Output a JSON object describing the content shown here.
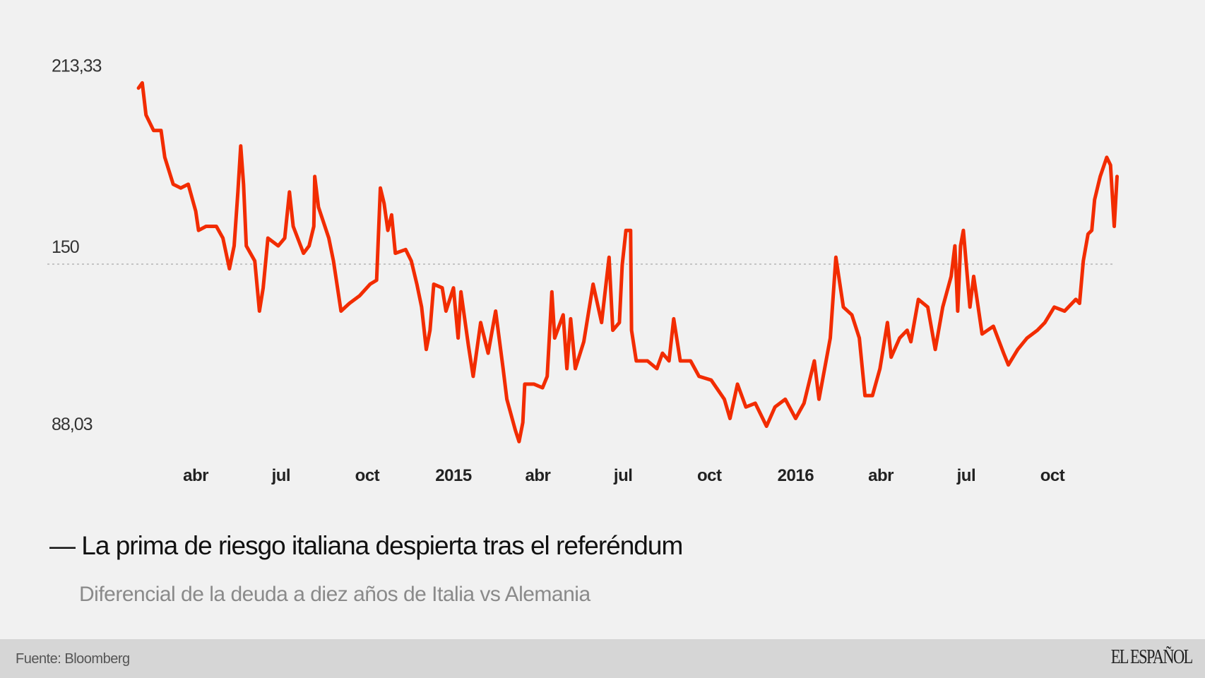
{
  "chart_data": {
    "type": "line",
    "title": "— La prima de riesgo italiana despierta tras el referéndum",
    "subtitle": "Diferencial de la deuda a diez años de Italia vs Alemania",
    "xlabel": "",
    "ylabel": "",
    "ylim": [
      88.03,
      213.33
    ],
    "y_ticks": [
      {
        "value": 213.33,
        "label": "213,33"
      },
      {
        "value": 150,
        "label": "150"
      },
      {
        "value": 88.03,
        "label": "88,03"
      }
    ],
    "reference_line": {
      "value": 150,
      "style": "dotted"
    },
    "x_ticks": [
      {
        "date": "2014-04-01",
        "label": "abr"
      },
      {
        "date": "2014-07-01",
        "label": "jul"
      },
      {
        "date": "2014-10-01",
        "label": "oct"
      },
      {
        "date": "2015-01-01",
        "label": "2015"
      },
      {
        "date": "2015-04-01",
        "label": "abr"
      },
      {
        "date": "2015-07-01",
        "label": "jul"
      },
      {
        "date": "2015-10-01",
        "label": "oct"
      },
      {
        "date": "2016-01-01",
        "label": "2016"
      },
      {
        "date": "2016-04-01",
        "label": "abr"
      },
      {
        "date": "2016-07-01",
        "label": "jul"
      },
      {
        "date": "2016-10-01",
        "label": "oct"
      }
    ],
    "grid": false,
    "legend": "none",
    "series": [
      {
        "color": "#f22c00",
        "points": [
          [
            "2014-01-30",
            211.5
          ],
          [
            "2014-02-03",
            213.3
          ],
          [
            "2014-02-07",
            202.1
          ],
          [
            "2014-02-15",
            196.7
          ],
          [
            "2014-02-23",
            196.7
          ],
          [
            "2014-02-27",
            187.3
          ],
          [
            "2014-03-08",
            177.9
          ],
          [
            "2014-03-16",
            176.6
          ],
          [
            "2014-03-24",
            177.9
          ],
          [
            "2014-04-01",
            168.5
          ],
          [
            "2014-04-04",
            161.8
          ],
          [
            "2014-04-12",
            163.2
          ],
          [
            "2014-04-23",
            163.2
          ],
          [
            "2014-04-30",
            159.1
          ],
          [
            "2014-05-07",
            148.4
          ],
          [
            "2014-05-12",
            156.4
          ],
          [
            "2014-05-16",
            175.2
          ],
          [
            "2014-05-19",
            191.3
          ],
          [
            "2014-05-22",
            177.9
          ],
          [
            "2014-05-25",
            156.4
          ],
          [
            "2014-06-03",
            151.1
          ],
          [
            "2014-06-08",
            133.6
          ],
          [
            "2014-06-12",
            141.7
          ],
          [
            "2014-06-17",
            159.1
          ],
          [
            "2014-06-28",
            156.4
          ],
          [
            "2014-07-05",
            159.1
          ],
          [
            "2014-07-10",
            175.2
          ],
          [
            "2014-07-14",
            163.2
          ],
          [
            "2014-07-25",
            153.8
          ],
          [
            "2014-07-31",
            156.4
          ],
          [
            "2014-08-05",
            163.2
          ],
          [
            "2014-08-06",
            180.6
          ],
          [
            "2014-08-10",
            169.9
          ],
          [
            "2014-08-21",
            159.1
          ],
          [
            "2014-08-26",
            151.1
          ],
          [
            "2014-09-03",
            133.6
          ],
          [
            "2014-09-12",
            136.3
          ],
          [
            "2014-09-23",
            139.0
          ],
          [
            "2014-10-04",
            143.0
          ],
          [
            "2014-10-11",
            144.4
          ],
          [
            "2014-10-15",
            176.6
          ],
          [
            "2014-10-19",
            171.2
          ],
          [
            "2014-10-23",
            161.8
          ],
          [
            "2014-10-27",
            167.2
          ],
          [
            "2014-10-31",
            153.8
          ],
          [
            "2014-11-11",
            155.1
          ],
          [
            "2014-11-17",
            151.1
          ],
          [
            "2014-11-23",
            143.0
          ],
          [
            "2014-11-28",
            135.0
          ],
          [
            "2014-12-03",
            120.2
          ],
          [
            "2014-12-07",
            126.9
          ],
          [
            "2014-12-11",
            143.0
          ],
          [
            "2014-12-20",
            141.7
          ],
          [
            "2014-12-24",
            133.6
          ],
          [
            "2015-01-01",
            141.7
          ],
          [
            "2015-01-06",
            124.2
          ],
          [
            "2015-01-09",
            140.3
          ],
          [
            "2015-01-17",
            121.5
          ],
          [
            "2015-01-22",
            110.8
          ],
          [
            "2015-01-30",
            129.6
          ],
          [
            "2015-02-07",
            118.9
          ],
          [
            "2015-02-15",
            133.6
          ],
          [
            "2015-02-23",
            113.5
          ],
          [
            "2015-02-27",
            102.8
          ],
          [
            "2015-03-08",
            92.0
          ],
          [
            "2015-03-12",
            88.0
          ],
          [
            "2015-03-16",
            94.7
          ],
          [
            "2015-03-18",
            108.1
          ],
          [
            "2015-03-28",
            108.1
          ],
          [
            "2015-04-06",
            106.8
          ],
          [
            "2015-04-11",
            110.8
          ],
          [
            "2015-04-16",
            140.3
          ],
          [
            "2015-04-19",
            124.2
          ],
          [
            "2015-04-28",
            132.3
          ],
          [
            "2015-05-02",
            113.5
          ],
          [
            "2015-05-06",
            130.9
          ],
          [
            "2015-05-11",
            113.5
          ],
          [
            "2015-05-20",
            122.9
          ],
          [
            "2015-05-30",
            143.0
          ],
          [
            "2015-06-08",
            129.6
          ],
          [
            "2015-06-16",
            152.4
          ],
          [
            "2015-06-20",
            126.9
          ],
          [
            "2015-06-27",
            129.6
          ],
          [
            "2015-06-30",
            149.7
          ],
          [
            "2015-07-04",
            161.8
          ],
          [
            "2015-07-09",
            161.8
          ],
          [
            "2015-07-10",
            126.9
          ],
          [
            "2015-07-15",
            116.2
          ],
          [
            "2015-07-27",
            116.2
          ],
          [
            "2015-08-06",
            113.5
          ],
          [
            "2015-08-12",
            118.9
          ],
          [
            "2015-08-19",
            116.2
          ],
          [
            "2015-08-24",
            130.9
          ],
          [
            "2015-08-31",
            116.2
          ],
          [
            "2015-09-11",
            116.2
          ],
          [
            "2015-09-20",
            110.8
          ],
          [
            "2015-10-03",
            109.5
          ],
          [
            "2015-10-17",
            102.8
          ],
          [
            "2015-10-23",
            96.1
          ],
          [
            "2015-10-31",
            108.1
          ],
          [
            "2015-11-09",
            100.1
          ],
          [
            "2015-11-19",
            101.4
          ],
          [
            "2015-12-01",
            93.4
          ],
          [
            "2015-12-10",
            100.1
          ],
          [
            "2015-12-21",
            102.8
          ],
          [
            "2016-01-01",
            96.1
          ],
          [
            "2016-01-10",
            101.4
          ],
          [
            "2016-01-21",
            116.2
          ],
          [
            "2016-01-26",
            102.8
          ],
          [
            "2016-02-07",
            124.2
          ],
          [
            "2016-02-13",
            152.4
          ],
          [
            "2016-02-21",
            135.0
          ],
          [
            "2016-03-01",
            132.3
          ],
          [
            "2016-03-09",
            124.2
          ],
          [
            "2016-03-15",
            104.1
          ],
          [
            "2016-03-23",
            104.1
          ],
          [
            "2016-03-31",
            113.5
          ],
          [
            "2016-04-08",
            129.6
          ],
          [
            "2016-04-12",
            117.5
          ],
          [
            "2016-04-21",
            124.2
          ],
          [
            "2016-04-29",
            126.9
          ],
          [
            "2016-05-03",
            122.9
          ],
          [
            "2016-05-11",
            137.7
          ],
          [
            "2016-05-21",
            135.0
          ],
          [
            "2016-05-29",
            120.2
          ],
          [
            "2016-06-06",
            135.0
          ],
          [
            "2016-06-15",
            145.7
          ],
          [
            "2016-06-19",
            156.4
          ],
          [
            "2016-06-22",
            133.6
          ],
          [
            "2016-06-25",
            156.4
          ],
          [
            "2016-06-28",
            161.8
          ],
          [
            "2016-07-05",
            135.0
          ],
          [
            "2016-07-09",
            145.7
          ],
          [
            "2016-07-18",
            125.6
          ],
          [
            "2016-07-30",
            128.3
          ],
          [
            "2016-08-10",
            118.9
          ],
          [
            "2016-08-15",
            114.8
          ],
          [
            "2016-08-25",
            120.2
          ],
          [
            "2016-09-04",
            124.2
          ],
          [
            "2016-09-15",
            126.9
          ],
          [
            "2016-09-23",
            129.6
          ],
          [
            "2016-10-03",
            135.0
          ],
          [
            "2016-10-14",
            133.6
          ],
          [
            "2016-10-26",
            137.7
          ],
          [
            "2016-10-30",
            136.3
          ],
          [
            "2016-11-03",
            151.1
          ],
          [
            "2016-11-08",
            160.5
          ],
          [
            "2016-11-12",
            161.8
          ],
          [
            "2016-11-15",
            172.5
          ],
          [
            "2016-11-21",
            180.6
          ],
          [
            "2016-11-28",
            187.3
          ],
          [
            "2016-12-02",
            184.6
          ],
          [
            "2016-12-06",
            163.2
          ],
          [
            "2016-12-09",
            180.6
          ]
        ]
      }
    ]
  },
  "footer": {
    "source": "Fuente: Bloomberg",
    "logo_text": "EL ESPAÑOL"
  }
}
